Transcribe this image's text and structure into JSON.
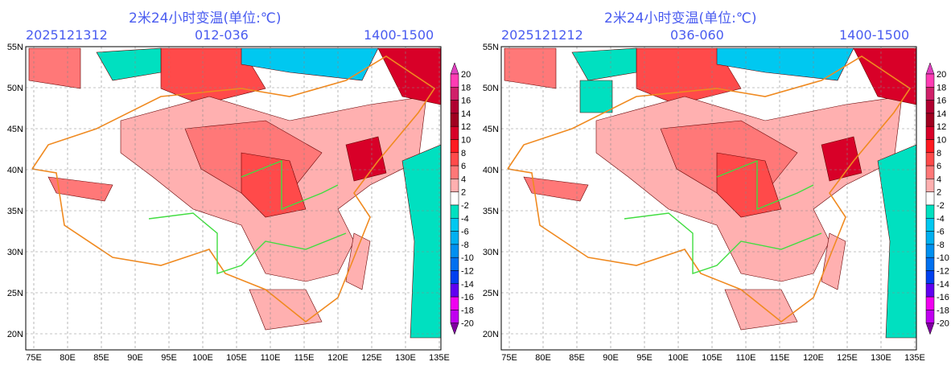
{
  "panels": [
    {
      "title": "2米24小时变温(单位:℃)",
      "init_time": "2025121312",
      "forecast_range": "012-036",
      "time_window": "1400-1500"
    },
    {
      "title": "2米24小时变温(单位:℃)",
      "init_time": "2025121212",
      "forecast_range": "036-060",
      "time_window": "1400-1500"
    }
  ],
  "lat_labels": [
    "55N",
    "50N",
    "45N",
    "40N",
    "35N",
    "30N",
    "25N",
    "20N"
  ],
  "lon_labels": [
    "75E",
    "80E",
    "85E",
    "90E",
    "95E",
    "100E",
    "105E",
    "110E",
    "115E",
    "120E",
    "125E",
    "130E",
    "135E"
  ],
  "colorbar": {
    "labels": [
      "20",
      "18",
      "16",
      "14",
      "12",
      "10",
      "8",
      "6",
      "4",
      "2",
      "-2",
      "-4",
      "-6",
      "-8",
      "-10",
      "-12",
      "-14",
      "-16",
      "-18",
      "-20"
    ],
    "colors": [
      "#ff3cb4",
      "#d0206a",
      "#b00030",
      "#a00020",
      "#d80028",
      "#ff1a20",
      "#ff4a4a",
      "#ff7878",
      "#ffb0b0",
      "#ffffff",
      "#00e0c0",
      "#00c8f0",
      "#00b0f0",
      "#0090f0",
      "#0070f0",
      "#0040f0",
      "#6000f0",
      "#f000f0",
      "#c000f0"
    ],
    "top_arrow": "#e040c0",
    "bottom_arrow": "#8000a0"
  }
}
